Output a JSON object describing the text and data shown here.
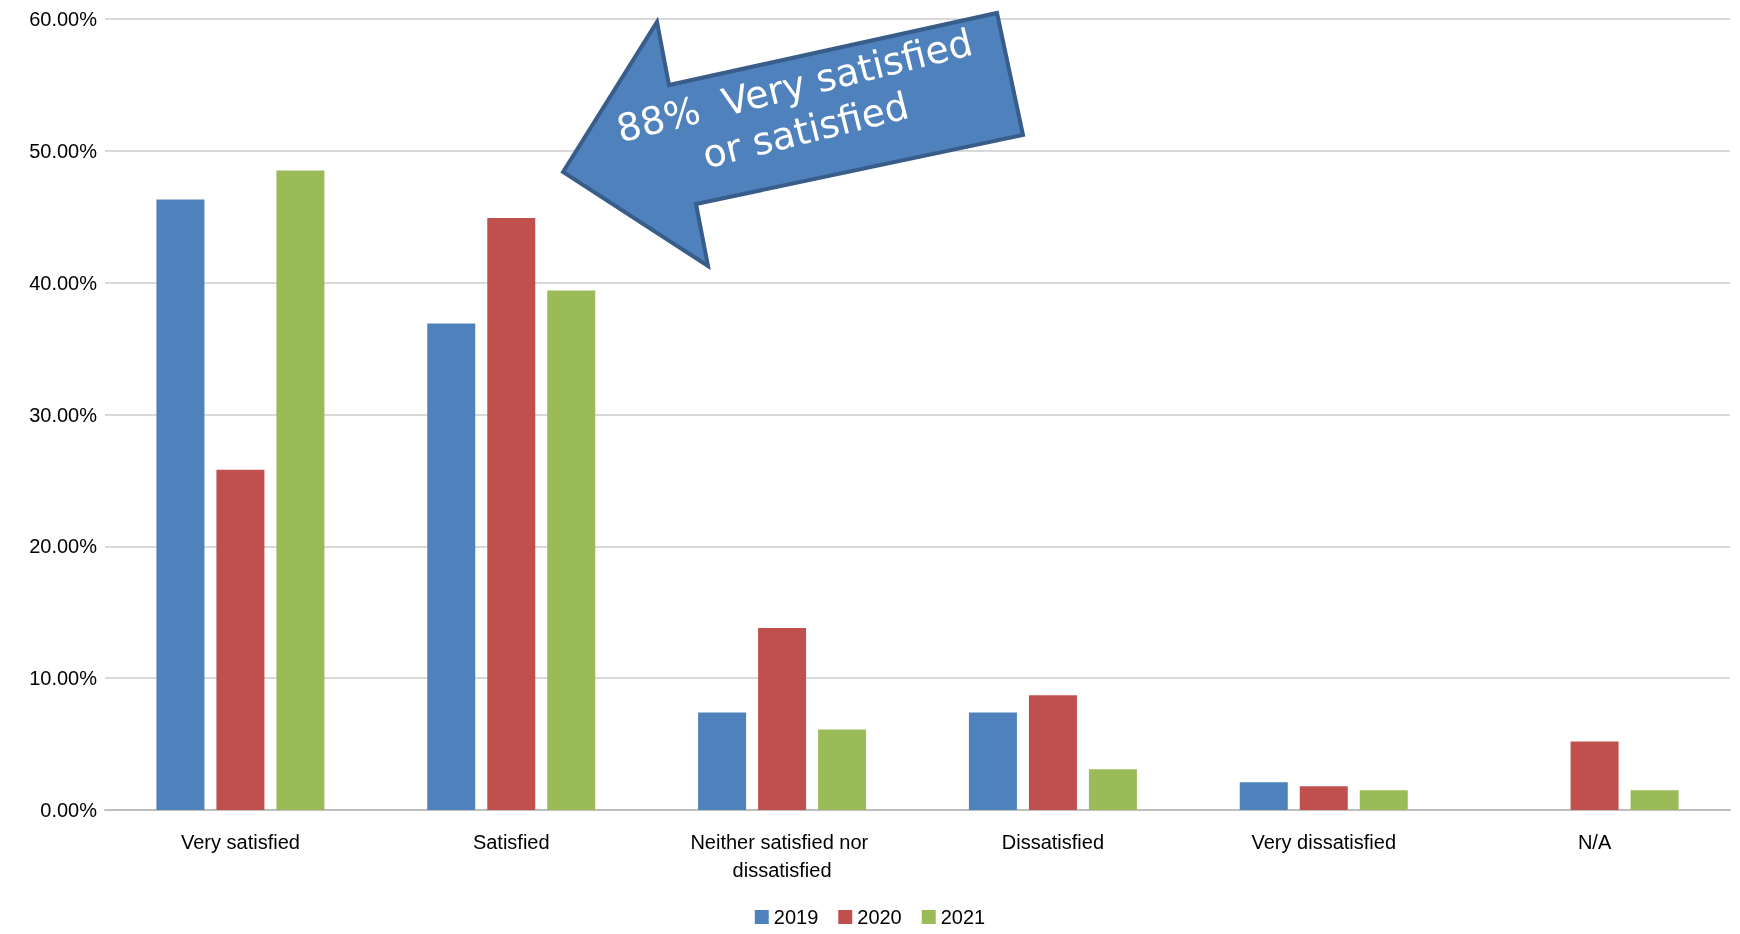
{
  "chart_data": {
    "type": "bar",
    "categories": [
      "Very satisfied",
      "Satisfied",
      "Neither satisfied nor dissatisfied",
      "Dissatisfied",
      "Very dissatisfied",
      "N/A"
    ],
    "series": [
      {
        "name": "2019",
        "color": "#4f81bd",
        "values": [
          46.3,
          36.9,
          7.4,
          7.4,
          2.1,
          0
        ]
      },
      {
        "name": "2020",
        "color": "#c0504d",
        "values": [
          25.8,
          44.9,
          13.8,
          8.7,
          1.8,
          5.2
        ]
      },
      {
        "name": "2021",
        "color": "#9bbb59",
        "values": [
          48.5,
          39.4,
          6.1,
          3.1,
          1.5,
          1.5
        ]
      }
    ],
    "ylim": [
      0,
      60
    ],
    "yticks": [
      {
        "value": 0,
        "label": "0.00%"
      },
      {
        "value": 10,
        "label": "10.00%"
      },
      {
        "value": 20,
        "label": "20.00%"
      },
      {
        "value": 30,
        "label": "30.00%"
      },
      {
        "value": 40,
        "label": "40.00%"
      },
      {
        "value": 50,
        "label": "50.00%"
      },
      {
        "value": 60,
        "label": "60.00%"
      }
    ],
    "grid": "y",
    "legend": "bottom",
    "annotations": [
      "88%  Very satisfied or satisfied"
    ]
  }
}
